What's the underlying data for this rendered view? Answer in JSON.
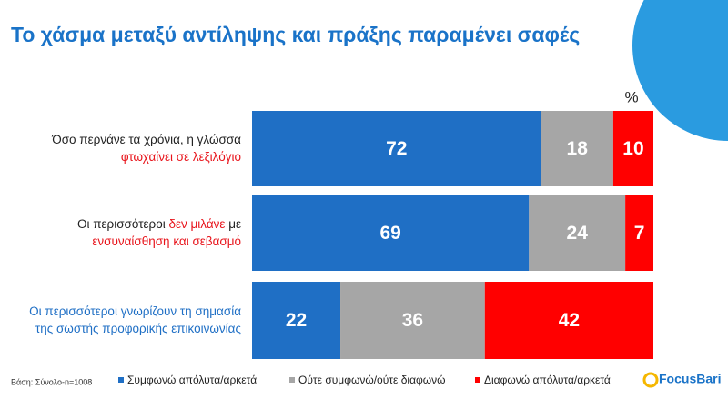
{
  "chart_data": {
    "type": "stacked-bar-horizontal",
    "title": "Το χάσμα μεταξύ αντίληψης και πράξης παραμένει σαφές",
    "unit_label": "%",
    "note": "Βάση: Σύνολο-n=1008",
    "brand": "FocusBari",
    "xlim": [
      0,
      100
    ],
    "categories": [
      [
        [
          {
            "text": "Όσο περνάνε τα χρόνια, η γλώσσα",
            "color": "#222222"
          }
        ],
        [
          {
            "text": "φτωχαίνει σε λεξιλόγιο",
            "color": "#e8141b"
          }
        ]
      ],
      [
        [
          {
            "text": "Οι περισσότεροι ",
            "color": "#222222"
          },
          {
            "text": "δεν μιλάνε",
            "color": "#e8141b"
          },
          {
            "text": " με",
            "color": "#222222"
          }
        ],
        [
          {
            "text": "ενσυναίσθηση και σεβασμό",
            "color": "#e8141b"
          }
        ]
      ],
      [
        [
          {
            "text": "Οι περισσότεροι γνωρίζουν τη σημασία",
            "color": "#1f6fc5"
          }
        ],
        [
          {
            "text": "της σωστής προφορικής επικοινωνίας",
            "color": "#1f6fc5"
          }
        ]
      ]
    ],
    "series": [
      {
        "name": "Συμφωνώ απόλυτα/αρκετά",
        "color": "#1f6fc5",
        "values": [
          72,
          69,
          22
        ]
      },
      {
        "name": "Ούτε συμφωνώ/ούτε διαφωνώ",
        "color": "#a6a6a6",
        "values": [
          18,
          24,
          36
        ]
      },
      {
        "name": "Διαφωνώ απόλυτα/αρκετά",
        "color": "#ff0000",
        "values": [
          10,
          7,
          42
        ]
      }
    ]
  }
}
